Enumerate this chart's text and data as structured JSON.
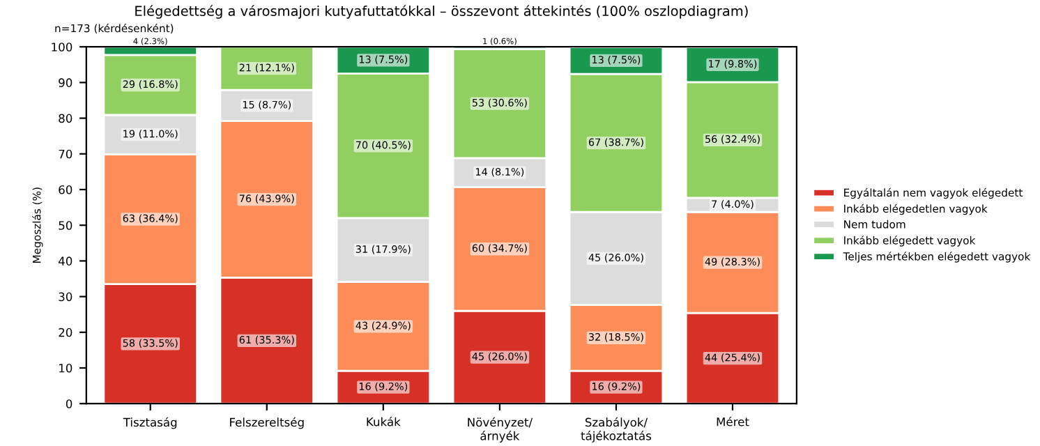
{
  "chart_data": {
    "type": "bar",
    "stacked": true,
    "title": "Elégedettség a városmajori kutyafuttatókkal – összevont áttekintés (100% oszlopdiagram)",
    "ylabel": "Megoszlás (%)",
    "annotations": [
      "n=173 (kérdésenként)"
    ],
    "categories": [
      "Tisztaság",
      "Felszereltség",
      "Kukák",
      "Növényzet/\nárnyék",
      "Szabályok/\ntájékoztatás",
      "Méret"
    ],
    "series": [
      {
        "name": "Egyáltalán nem vagyok elégedett",
        "color": "#d73027",
        "values": [
          33.5,
          35.3,
          9.2,
          26.0,
          9.2,
          25.4
        ],
        "value_labels": [
          "58 (33.5%)",
          "61 (35.3%)",
          "16 (9.2%)",
          "45 (26.0%)",
          "16 (9.2%)",
          "44 (25.4%)"
        ]
      },
      {
        "name": "Inkább elégedetlen vagyok",
        "color": "#fc8d59",
        "values": [
          36.4,
          43.9,
          24.9,
          34.7,
          18.5,
          28.3
        ],
        "value_labels": [
          "63 (36.4%)",
          "76 (43.9%)",
          "43 (24.9%)",
          "60 (34.7%)",
          "32 (18.5%)",
          "49 (28.3%)"
        ]
      },
      {
        "name": "Nem tudom",
        "color": "#dcdcdc",
        "values": [
          11.0,
          8.7,
          17.9,
          8.1,
          26.0,
          4.0
        ],
        "value_labels": [
          "19 (11.0%)",
          "15 (8.7%)",
          "31 (17.9%)",
          "14 (8.1%)",
          "45 (26.0%)",
          "7 (4.0%)"
        ]
      },
      {
        "name": "Inkább elégedett vagyok",
        "color": "#91cf60",
        "values": [
          16.8,
          12.1,
          40.5,
          30.6,
          38.7,
          32.4
        ],
        "value_labels": [
          "29 (16.8%)",
          "21 (12.1%)",
          "70 (40.5%)",
          "53 (30.6%)",
          "67 (38.7%)",
          "56 (32.4%)"
        ]
      },
      {
        "name": "Teljes mértékben elégedett vagyok",
        "color": "#1a9850",
        "values": [
          2.3,
          null,
          7.5,
          0.6,
          7.5,
          9.8
        ],
        "value_labels": [
          "4 (2.3%)",
          null,
          "13 (7.5%)",
          "1 (0.6%)",
          "13 (7.5%)",
          "17 (9.8%)"
        ]
      }
    ],
    "ylim": [
      0,
      100
    ],
    "yticks": [
      0,
      10,
      20,
      30,
      40,
      50,
      60,
      70,
      80,
      90,
      100
    ],
    "legend": "right",
    "grid": false
  }
}
